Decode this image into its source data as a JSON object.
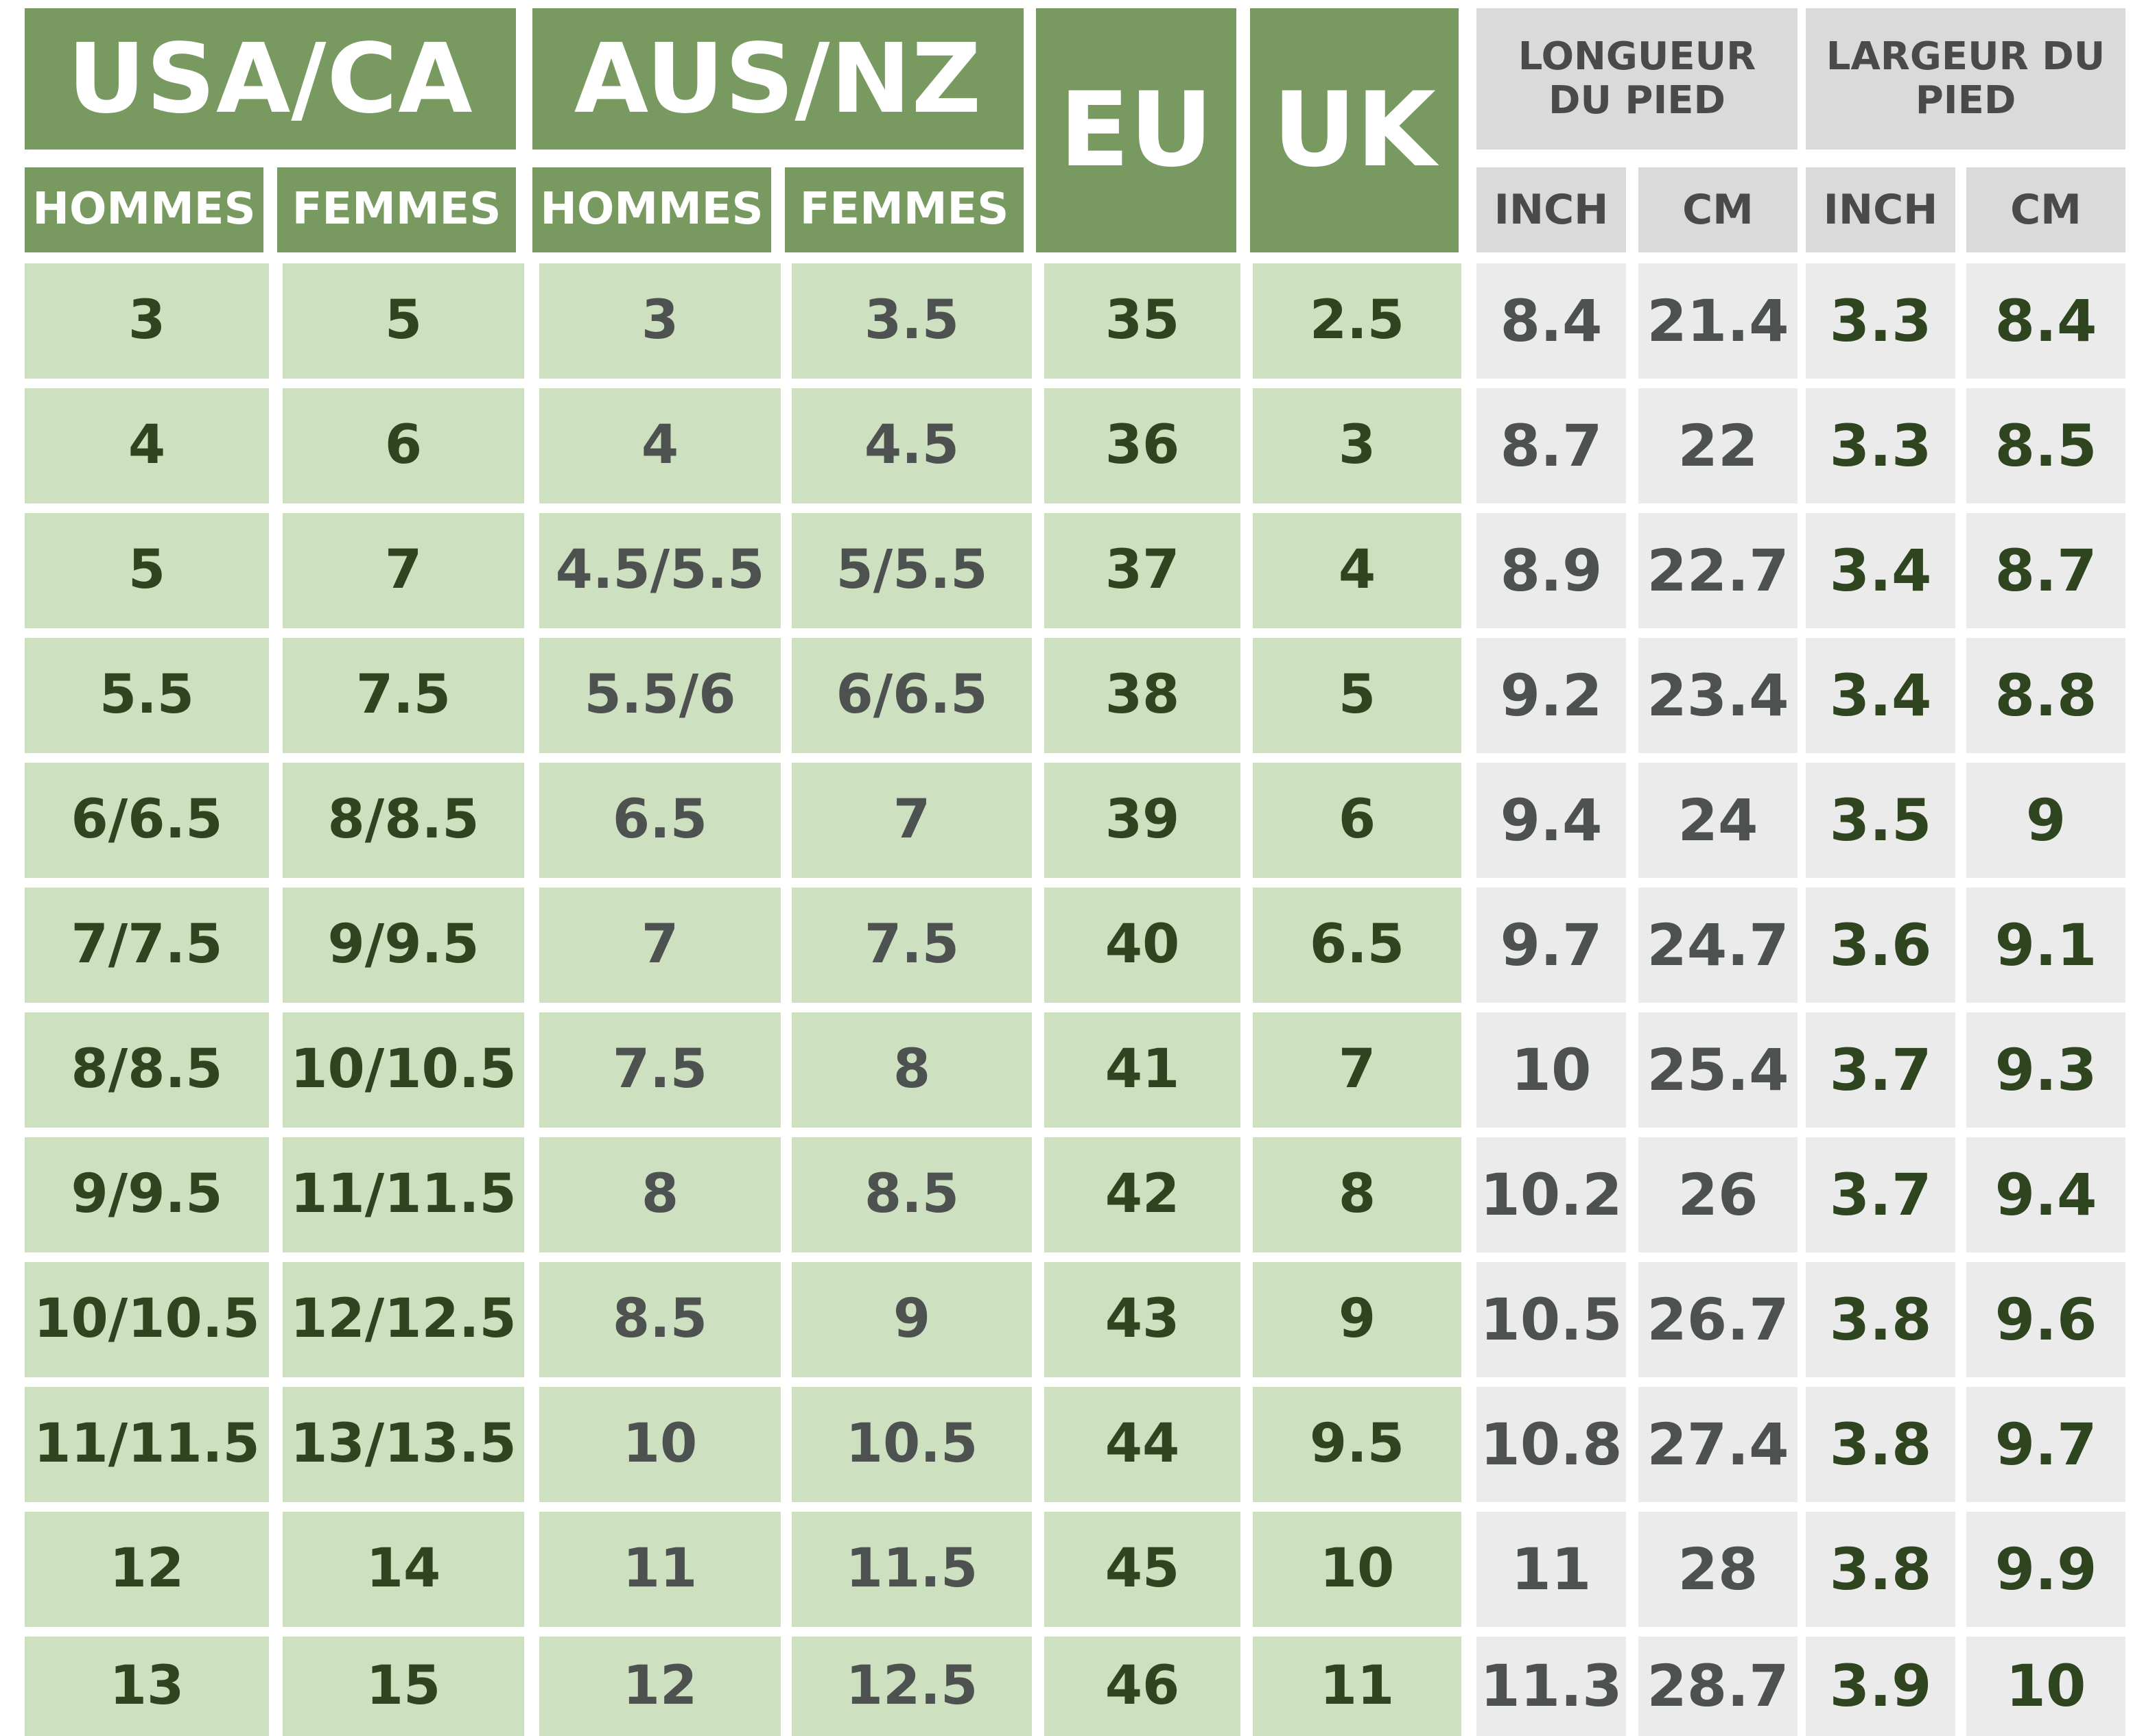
{
  "headers": {
    "usa": "USA/CA",
    "aus": "AUS/NZ",
    "eu": "EU",
    "uk": "UK",
    "length": "LONGUEUR DU PIED",
    "width": "LARGEUR DU PIED",
    "men": "HOMMES",
    "women": "FEMMES",
    "inch": "INCH",
    "cm": "CM"
  },
  "rows": [
    [
      "3",
      "5",
      "3",
      "3.5",
      "35",
      "2.5",
      "8.4",
      "21.4",
      "3.3",
      "8.4"
    ],
    [
      "4",
      "6",
      "4",
      "4.5",
      "36",
      "3",
      "8.7",
      "22",
      "3.3",
      "8.5"
    ],
    [
      "5",
      "7",
      "4.5/5.5",
      "5/5.5",
      "37",
      "4",
      "8.9",
      "22.7",
      "3.4",
      "8.7"
    ],
    [
      "5.5",
      "7.5",
      "5.5/6",
      "6/6.5",
      "38",
      "5",
      "9.2",
      "23.4",
      "3.4",
      "8.8"
    ],
    [
      "6/6.5",
      "8/8.5",
      "6.5",
      "7",
      "39",
      "6",
      "9.4",
      "24",
      "3.5",
      "9"
    ],
    [
      "7/7.5",
      "9/9.5",
      "7",
      "7.5",
      "40",
      "6.5",
      "9.7",
      "24.7",
      "3.6",
      "9.1"
    ],
    [
      "8/8.5",
      "10/10.5",
      "7.5",
      "8",
      "41",
      "7",
      "10",
      "25.4",
      "3.7",
      "9.3"
    ],
    [
      "9/9.5",
      "11/11.5",
      "8",
      "8.5",
      "42",
      "8",
      "10.2",
      "26",
      "3.7",
      "9.4"
    ],
    [
      "10/10.5",
      "12/12.5",
      "8.5",
      "9",
      "43",
      "9",
      "10.5",
      "26.7",
      "3.8",
      "9.6"
    ],
    [
      "11/11.5",
      "13/13.5",
      "10",
      "10.5",
      "44",
      "9.5",
      "10.8",
      "27.4",
      "3.8",
      "9.7"
    ],
    [
      "12",
      "14",
      "11",
      "11.5",
      "45",
      "10",
      "11",
      "28",
      "3.8",
      "9.9"
    ],
    [
      "13",
      "15",
      "12",
      "12.5",
      "46",
      "11",
      "11.3",
      "28.7",
      "3.9",
      "10"
    ]
  ]
}
